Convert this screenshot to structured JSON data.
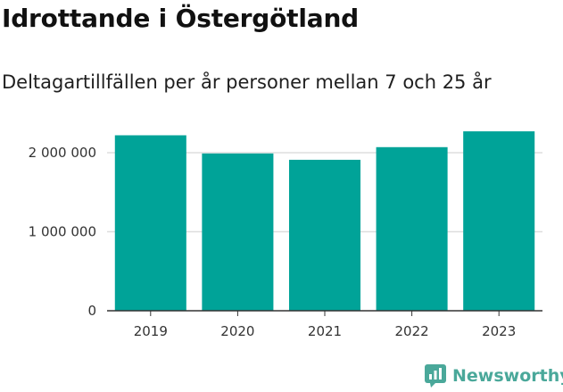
{
  "chart_data": {
    "type": "bar",
    "title": "Idrottande i Östergötland",
    "subtitle": "Deltagartillfällen per år personer mellan 7 och 25 år",
    "categories": [
      "2019",
      "2020",
      "2021",
      "2022",
      "2023"
    ],
    "values": [
      2220000,
      1990000,
      1910000,
      2070000,
      2270000
    ],
    "yticks": [
      0,
      1000000,
      2000000
    ],
    "ytick_labels": [
      "0",
      "1 000 000",
      "2 000 000"
    ],
    "ylim": [
      0,
      2350000
    ],
    "xlabel": "",
    "ylabel": "",
    "grid": true,
    "bar_color": "#00a398",
    "grid_color": "#dddddd"
  },
  "brand": {
    "name": "Newsworthy",
    "icon": "newsworthy-logo-icon",
    "color": "#4aa89a"
  }
}
